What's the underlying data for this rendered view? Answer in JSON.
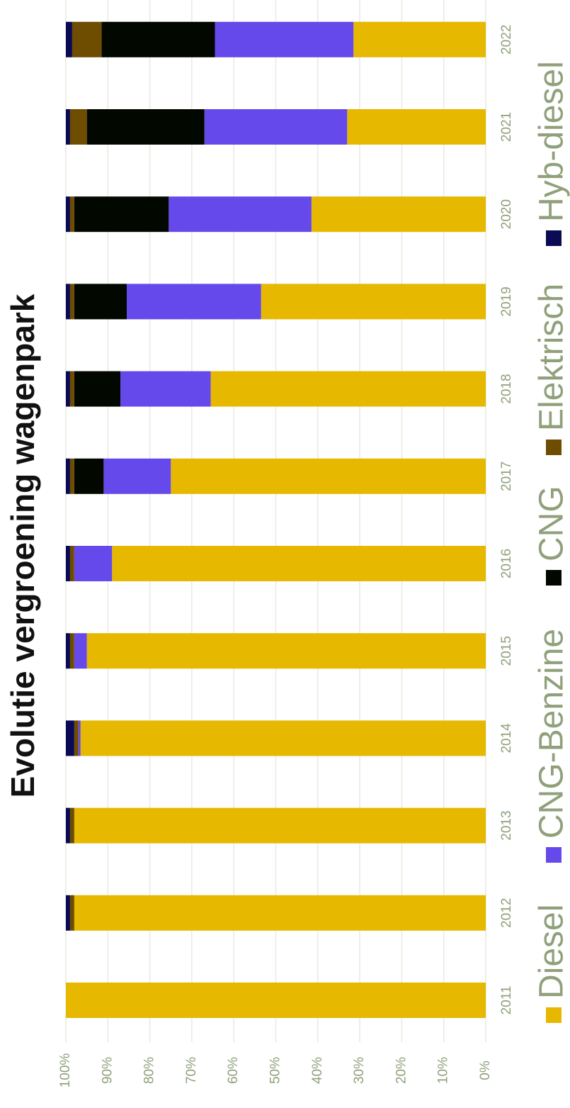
{
  "chart_data": {
    "type": "bar",
    "orientation": "stacked-100-percent",
    "title": "Evolutie vergroening wagenpark",
    "xlabel": "",
    "ylabel": "",
    "ylim": [
      0,
      100
    ],
    "y_ticks": [
      "0%",
      "10%",
      "20%",
      "30%",
      "40%",
      "50%",
      "60%",
      "70%",
      "80%",
      "90%",
      "100%"
    ],
    "categories": [
      "2011",
      "2012",
      "2013",
      "2014",
      "2015",
      "2016",
      "2017",
      "2018",
      "2019",
      "2020",
      "2021",
      "2022"
    ],
    "grid": true,
    "legend_position": "bottom",
    "series": [
      {
        "name": "Diesel",
        "color": "#e6b800",
        "values": [
          100,
          98,
          98,
          96.5,
          95,
          89,
          75,
          65.5,
          53.5,
          41.5,
          33,
          31.5
        ]
      },
      {
        "name": "CNG-Benzine",
        "color": "#6649ea",
        "values": [
          0,
          0,
          0,
          0.5,
          3,
          9,
          16,
          21.5,
          32,
          34,
          34,
          33
        ]
      },
      {
        "name": "CNG",
        "color": "#020800",
        "values": [
          0,
          0,
          0,
          0,
          0,
          0,
          7,
          11,
          12.5,
          22.5,
          28,
          27
        ]
      },
      {
        "name": "Elektrisch",
        "color": "#6e4c00",
        "values": [
          0,
          1,
          1,
          1,
          1,
          1,
          1,
          1,
          1,
          1,
          4,
          7
        ]
      },
      {
        "name": "Hyb-diesel",
        "color": "#0a0a55",
        "values": [
          0,
          1,
          1,
          2,
          1,
          1,
          1,
          1,
          1,
          1,
          1,
          1.5
        ]
      }
    ]
  }
}
